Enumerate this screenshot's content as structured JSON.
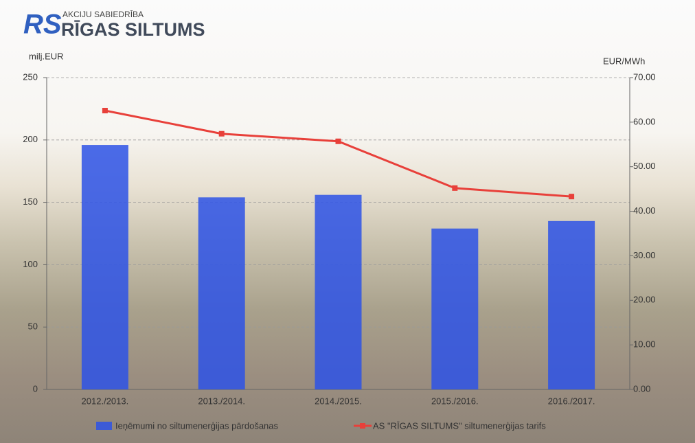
{
  "header": {
    "logo_mark": "RS",
    "company_type": "AKCIJU SABIEDRĪBA",
    "company_name": "RĪGAS SILTUMS"
  },
  "chart_data": {
    "type": "bar-line",
    "y_label": "milj.EUR",
    "y2_label": "EUR/MWh",
    "categories": [
      "2012./2013.",
      "2013./2014.",
      "2014./2015.",
      "2015./2016.",
      "2016./2017."
    ],
    "series": [
      {
        "name": "Ieņēmumi no siltumenerģijas pārdošanas",
        "type": "bar",
        "color": "#2d52e6",
        "values": [
          196,
          154,
          156,
          129,
          135
        ]
      },
      {
        "name": "AS \"RĪGAS SILTUMS\" siltumenerģijas tarifs",
        "type": "line",
        "axis": "y2",
        "color": "#e8403a",
        "values": [
          62.6,
          57.4,
          55.7,
          45.2,
          43.3
        ]
      }
    ],
    "ylim": [
      0,
      250
    ],
    "yticks": [
      0,
      50,
      100,
      150,
      200,
      250
    ],
    "y2lim": [
      0,
      70
    ],
    "y2ticks": [
      {
        "value": 0,
        "label": "0.00"
      },
      {
        "value": 10,
        "label": "10.00"
      },
      {
        "value": 20,
        "label": "20.00"
      },
      {
        "value": 30,
        "label": "30.00"
      },
      {
        "value": 40,
        "label": "40.00"
      },
      {
        "value": 50,
        "label": "50.00"
      },
      {
        "value": 60,
        "label": "60.00"
      },
      {
        "value": 70,
        "label": "70.00"
      }
    ],
    "grid": true
  }
}
